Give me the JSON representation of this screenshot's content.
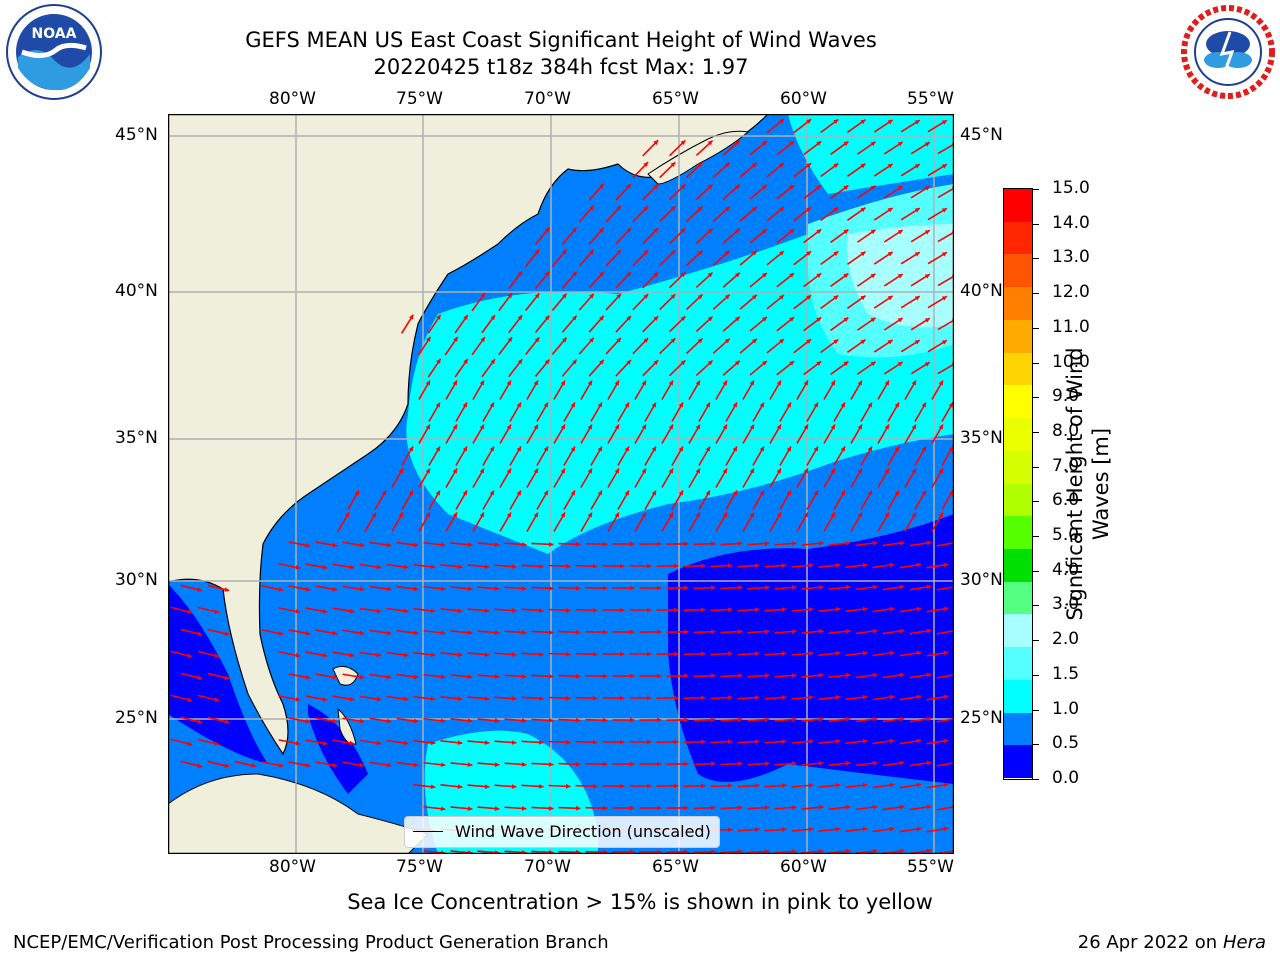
{
  "header": {
    "title_line1": "GEFS MEAN US East Coast Significant Height of Wind Waves",
    "title_line2": "20220425 t18z 384h fcst   Max: 1.97"
  },
  "logos": {
    "left": {
      "name": "noaa-logo",
      "text": "NOAA"
    },
    "right": {
      "name": "nws-logo"
    }
  },
  "map": {
    "lon_labels": [
      "80°W",
      "75°W",
      "70°W",
      "65°W",
      "60°W",
      "55°W"
    ],
    "lat_labels": [
      "45°N",
      "40°N",
      "35°N",
      "30°N",
      "25°N"
    ],
    "land_color": "#efefdc",
    "gridline_color": "#b0b0b0",
    "arrow_color": "#ff0000",
    "legend_label": "Wind Wave Direction (unscaled)"
  },
  "colorbar": {
    "label": "Significant Height of Wind Waves [m]",
    "ticks": [
      "15.0",
      "14.0",
      "13.0",
      "12.0",
      "11.0",
      "10.0",
      "9.0",
      "8.0",
      "7.0",
      "6.0",
      "5.0",
      "4.0",
      "3.0",
      "2.0",
      "1.5",
      "1.0",
      "0.5",
      "0.0"
    ],
    "colors": [
      "#ff0000",
      "#ff2600",
      "#ff5500",
      "#ff8000",
      "#ffaa00",
      "#ffd500",
      "#ffff00",
      "#eaff00",
      "#d5ff00",
      "#b0ff00",
      "#55ff00",
      "#00e000",
      "#55ff80",
      "#a8ffff",
      "#55ffff",
      "#00ffff",
      "#0080ff",
      "#0000ff"
    ]
  },
  "footer": {
    "note": "Sea Ice Concentration > 15% is shown in pink to yellow",
    "left": "NCEP/EMC/Verification Post Processing Product Generation Branch",
    "right_date": "26 Apr 2022 on ",
    "right_host": "Hera"
  }
}
